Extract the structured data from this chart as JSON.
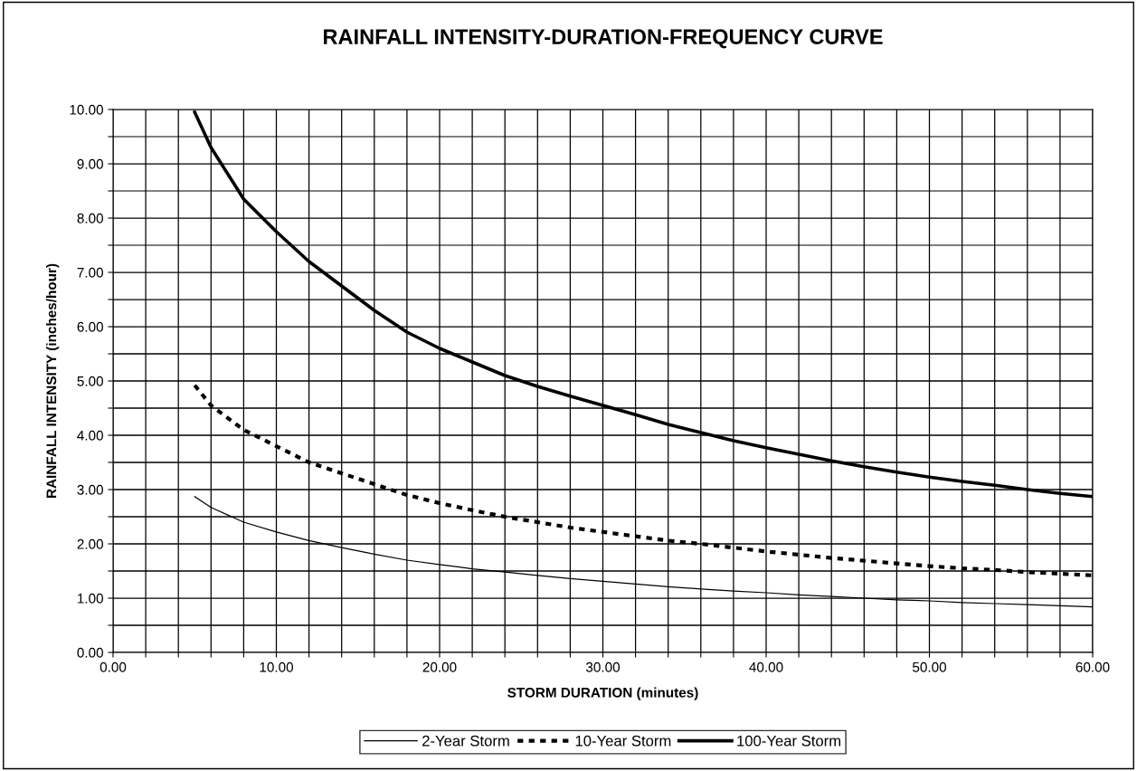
{
  "chart_data": {
    "type": "line",
    "title": "RAINFALL INTENSITY-DURATION-FREQUENCY CURVE",
    "xlabel": "STORM DURATION (minutes)",
    "ylabel": "RAINFALL INTENSITY (inches/hour)",
    "x": [
      5,
      6,
      8,
      10,
      12,
      14,
      16,
      18,
      20,
      22,
      24,
      26,
      28,
      30,
      32,
      34,
      36,
      38,
      40,
      42,
      44,
      46,
      48,
      50,
      52,
      54,
      56,
      58,
      60
    ],
    "series": [
      {
        "name": "2-Year Storm",
        "color": "#000000",
        "line_style": "solid",
        "values": [
          2.87,
          2.67,
          2.4,
          2.22,
          2.06,
          1.93,
          1.81,
          1.7,
          1.62,
          1.54,
          1.48,
          1.42,
          1.36,
          1.31,
          1.26,
          1.21,
          1.17,
          1.13,
          1.1,
          1.06,
          1.03,
          1.0,
          0.97,
          0.95,
          0.92,
          0.9,
          0.88,
          0.86,
          0.84
        ]
      },
      {
        "name": "10-Year Storm",
        "color": "#000000",
        "line_style": "dotted",
        "values": [
          4.92,
          4.55,
          4.1,
          3.8,
          3.5,
          3.3,
          3.1,
          2.9,
          2.75,
          2.62,
          2.5,
          2.4,
          2.3,
          2.22,
          2.14,
          2.06,
          2.0,
          1.93,
          1.86,
          1.8,
          1.74,
          1.69,
          1.64,
          1.59,
          1.55,
          1.52,
          1.48,
          1.45,
          1.42
        ]
      },
      {
        "name": "100-Year Storm",
        "color": "#000000",
        "line_style": "solid",
        "values": [
          9.95,
          9.3,
          8.35,
          7.75,
          7.2,
          6.75,
          6.3,
          5.9,
          5.6,
          5.35,
          5.1,
          4.9,
          4.72,
          4.55,
          4.38,
          4.2,
          4.05,
          3.9,
          3.77,
          3.65,
          3.53,
          3.42,
          3.32,
          3.23,
          3.15,
          3.08,
          3.0,
          2.93,
          2.87
        ]
      }
    ],
    "xlim": [
      0,
      60
    ],
    "ylim": [
      0,
      10
    ],
    "xticks": [
      {
        "value": 0,
        "label": "0.00"
      },
      {
        "value": 2,
        "label": null
      },
      {
        "value": 4,
        "label": null
      },
      {
        "value": 6,
        "label": null
      },
      {
        "value": 8,
        "label": null
      },
      {
        "value": 10,
        "label": "10.00"
      },
      {
        "value": 12,
        "label": null
      },
      {
        "value": 14,
        "label": null
      },
      {
        "value": 16,
        "label": null
      },
      {
        "value": 18,
        "label": null
      },
      {
        "value": 20,
        "label": "20.00"
      },
      {
        "value": 22,
        "label": null
      },
      {
        "value": 24,
        "label": null
      },
      {
        "value": 26,
        "label": null
      },
      {
        "value": 28,
        "label": null
      },
      {
        "value": 30,
        "label": "30.00"
      },
      {
        "value": 32,
        "label": null
      },
      {
        "value": 34,
        "label": null
      },
      {
        "value": 36,
        "label": null
      },
      {
        "value": 38,
        "label": null
      },
      {
        "value": 40,
        "label": "40.00"
      },
      {
        "value": 42,
        "label": null
      },
      {
        "value": 44,
        "label": null
      },
      {
        "value": 46,
        "label": null
      },
      {
        "value": 48,
        "label": null
      },
      {
        "value": 50,
        "label": "50.00"
      },
      {
        "value": 52,
        "label": null
      },
      {
        "value": 54,
        "label": null
      },
      {
        "value": 56,
        "label": null
      },
      {
        "value": 58,
        "label": null
      },
      {
        "value": 60,
        "label": "60.00"
      }
    ],
    "yticks": [
      {
        "value": 0,
        "label": "0.00"
      },
      {
        "value": 0.5,
        "label": null
      },
      {
        "value": 1,
        "label": "1.00"
      },
      {
        "value": 1.5,
        "label": null
      },
      {
        "value": 2,
        "label": "2.00"
      },
      {
        "value": 2.5,
        "label": null
      },
      {
        "value": 3,
        "label": "3.00"
      },
      {
        "value": 3.5,
        "label": null
      },
      {
        "value": 4,
        "label": "4.00"
      },
      {
        "value": 4.5,
        "label": null
      },
      {
        "value": 5,
        "label": "5.00"
      },
      {
        "value": 5.5,
        "label": null
      },
      {
        "value": 6,
        "label": "6.00"
      },
      {
        "value": 6.5,
        "label": null
      },
      {
        "value": 7,
        "label": "7.00"
      },
      {
        "value": 7.5,
        "label": null
      },
      {
        "value": 8,
        "label": "8.00"
      },
      {
        "value": 8.5,
        "label": null
      },
      {
        "value": 9,
        "label": "9.00"
      },
      {
        "value": 9.5,
        "label": null
      },
      {
        "value": 10,
        "label": "10.00"
      }
    ],
    "grid": true,
    "legend": "bottom",
    "marker": "none"
  }
}
